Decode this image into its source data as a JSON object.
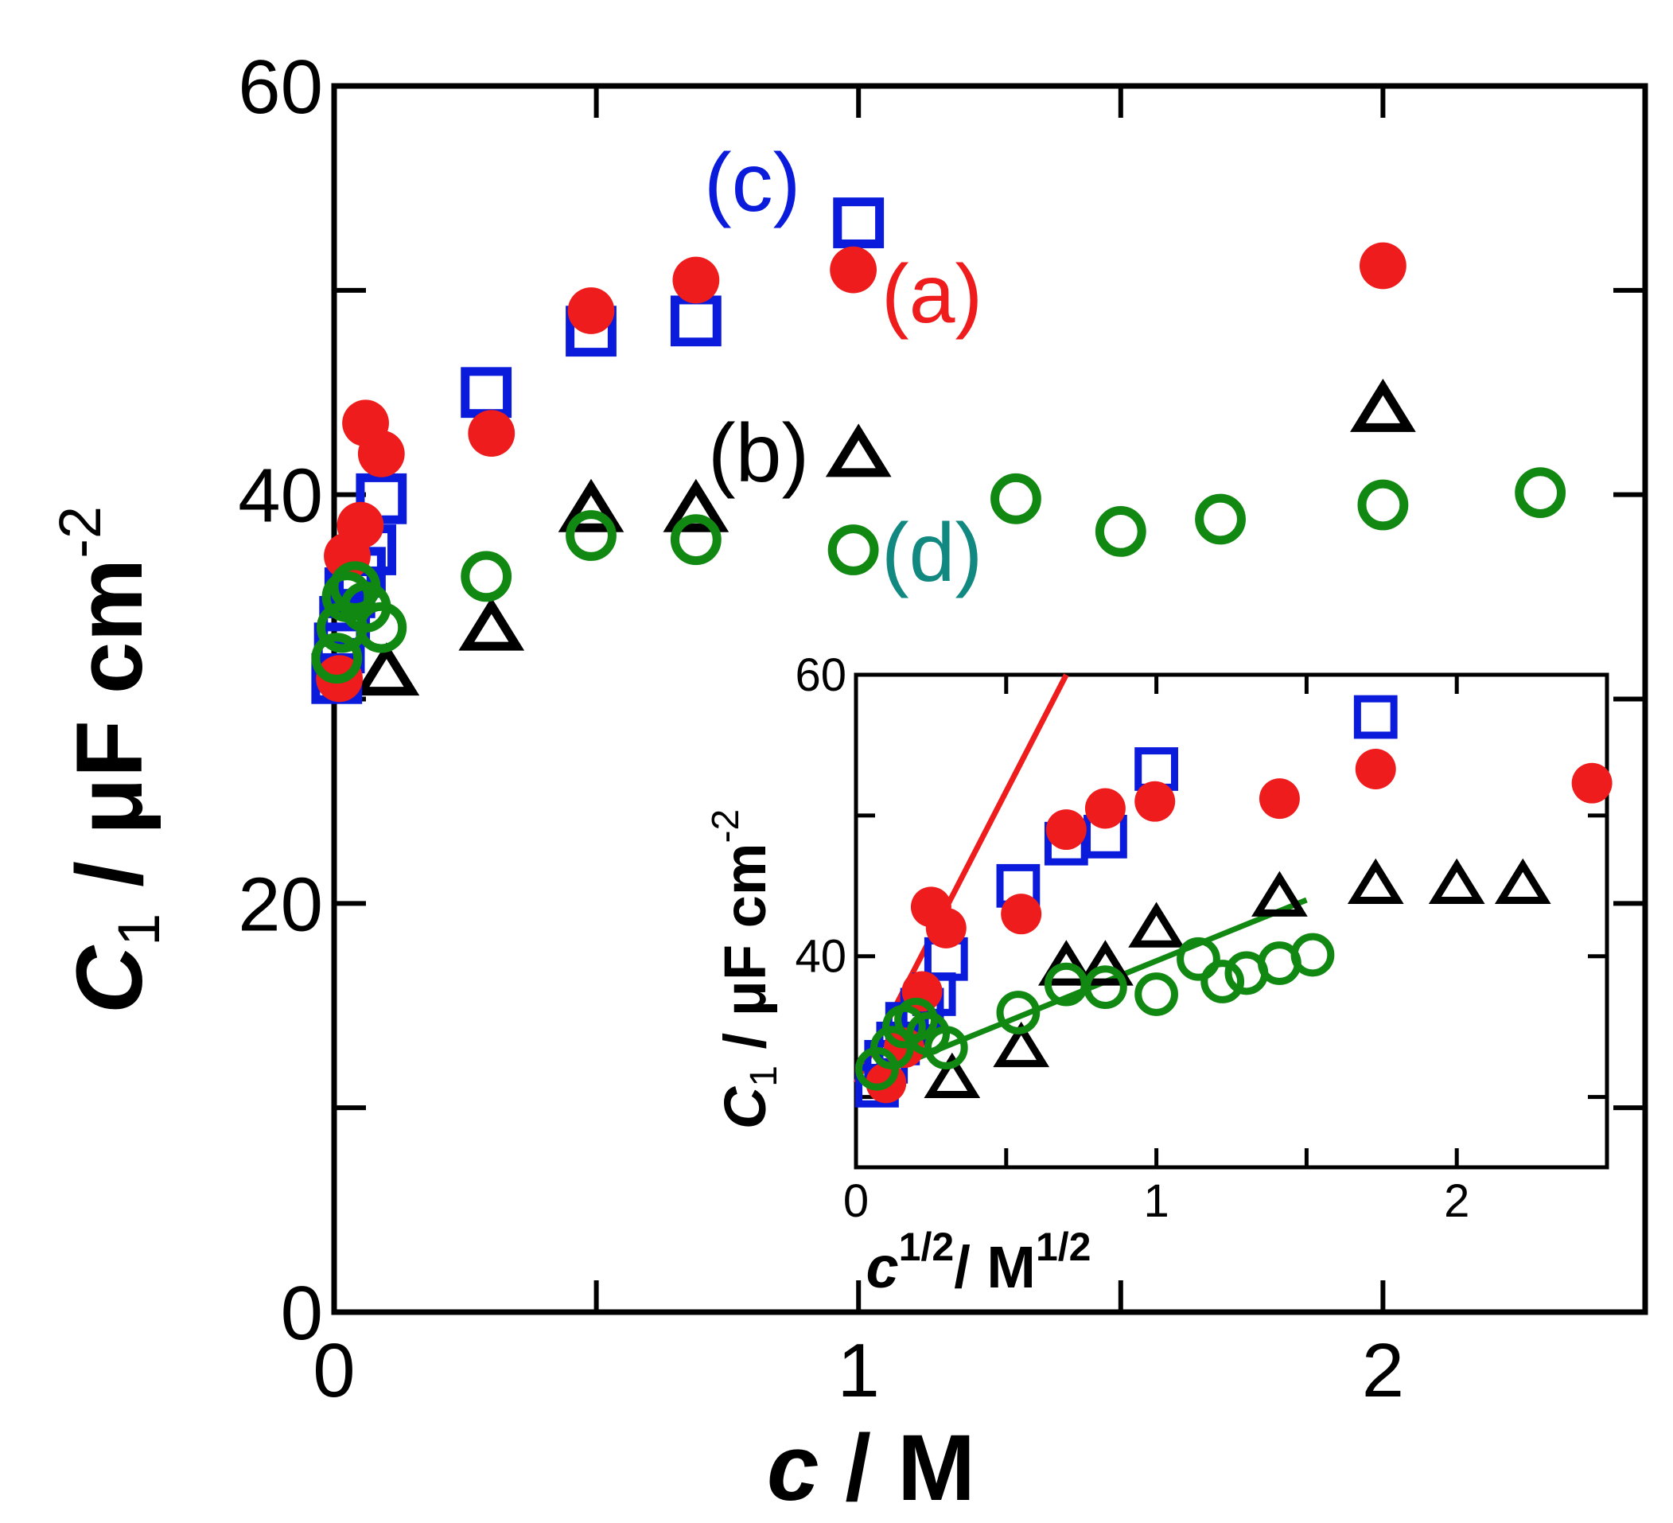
{
  "chart_data": [
    {
      "id": "main",
      "type": "scatter",
      "xlabel_var": "c",
      "xlabel_unit": " / M",
      "ylabel_var": "C",
      "ylabel_sub": "1",
      "ylabel_unit": " / μF cm",
      "ylabel_sup": "-2",
      "xlim": [
        0,
        2.5
      ],
      "ylim": [
        0,
        60
      ],
      "x_ticks": [
        0,
        1,
        2
      ],
      "x_tick_labels": [
        "0",
        "1",
        "2"
      ],
      "x_minor_ticks": [
        0.5,
        1.5
      ],
      "y_ticks": [
        0,
        20,
        40,
        60
      ],
      "y_tick_labels": [
        "0",
        "20",
        "40",
        "60"
      ],
      "y_minor_ticks": [
        10,
        30,
        50
      ],
      "series": [
        {
          "name": "(a)",
          "marker": "filled-circle",
          "color": "#ee1c1c",
          "x": [
            0.01,
            0.025,
            0.05,
            0.06,
            0.09,
            0.3,
            0.49,
            0.69,
            0.99,
            2.0
          ],
          "y": [
            31,
            37,
            38.5,
            43.5,
            42,
            43,
            49,
            50.5,
            51,
            51.2
          ]
        },
        {
          "name": "(b)",
          "marker": "open-triangle",
          "color": "#000000",
          "x": [
            0.1,
            0.3,
            0.49,
            0.69,
            1.0,
            2.0
          ],
          "y": [
            31.2,
            33.4,
            39.2,
            39.2,
            41.9,
            44.1
          ]
        },
        {
          "name": "(c)",
          "marker": "open-square",
          "color": "#0a1bdc",
          "x": [
            0.005,
            0.01,
            0.02,
            0.03,
            0.05,
            0.07,
            0.09,
            0.29,
            0.49,
            0.69,
            1.0
          ],
          "y": [
            31,
            32.5,
            33.8,
            35.2,
            36.2,
            37.3,
            39.8,
            45,
            48,
            48.5,
            53.3
          ]
        },
        {
          "name": "(d)",
          "marker": "open-circle",
          "color": "#118811",
          "x": [
            0.005,
            0.015,
            0.025,
            0.04,
            0.06,
            0.09,
            0.29,
            0.49,
            0.69,
            0.99,
            1.3,
            1.5,
            1.69,
            2.0,
            2.3
          ],
          "y": [
            32,
            33.5,
            35,
            35.5,
            34.5,
            33.5,
            36,
            38,
            37.8,
            37.3,
            39.8,
            38.2,
            38.8,
            39.5,
            40.1
          ]
        }
      ],
      "annotations": [
        {
          "text": "(a)",
          "color": "#ee1c1c"
        },
        {
          "text": "(b)",
          "color": "#000000"
        },
        {
          "text": "(c)",
          "color": "#0a1bdc"
        },
        {
          "text": "(d)",
          "color": "#118880"
        }
      ]
    },
    {
      "id": "inset",
      "type": "scatter",
      "xlabel_var": "c",
      "xlabel_sup": "1/2",
      "xlabel_unit": "/ M",
      "xlabel_unit_sup": "1/2",
      "ylabel_var": "C",
      "ylabel_sub": "1",
      "ylabel_unit": " / μF cm",
      "ylabel_sup": "-2",
      "xlim": [
        0,
        2.5
      ],
      "ylim": [
        25,
        60
      ],
      "x_ticks": [
        0,
        1,
        2
      ],
      "x_tick_labels": [
        "0",
        "1",
        "2"
      ],
      "x_minor_ticks": [
        0.5,
        1.5
      ],
      "y_ticks": [
        40,
        60
      ],
      "y_tick_labels": [
        "40",
        "60"
      ],
      "y_minor_ticks": [
        30,
        50
      ],
      "series": [
        {
          "name": "(a)",
          "marker": "filled-circle",
          "color": "#ee1c1c",
          "x": [
            0.1,
            0.16,
            0.22,
            0.25,
            0.3,
            0.55,
            0.7,
            0.83,
            0.995,
            1.41,
            1.73,
            2.45
          ],
          "y": [
            31,
            33.5,
            37.5,
            43.5,
            42,
            43,
            49,
            50.5,
            51,
            51.2,
            53.3,
            52.3
          ]
        },
        {
          "name": "(b)",
          "marker": "open-triangle",
          "color": "#000000",
          "x": [
            0.32,
            0.55,
            0.7,
            0.83,
            1.0,
            1.41,
            1.73,
            2.0,
            2.22
          ],
          "y": [
            31.2,
            33.4,
            39.2,
            39.2,
            41.9,
            44.1,
            45,
            45,
            45
          ]
        },
        {
          "name": "(c)",
          "marker": "open-square",
          "color": "#0a1bdc",
          "x": [
            0.07,
            0.1,
            0.14,
            0.17,
            0.22,
            0.26,
            0.3,
            0.54,
            0.7,
            0.83,
            1.0,
            1.73
          ],
          "y": [
            30.8,
            32.5,
            33.8,
            35.2,
            36.2,
            37.3,
            39.8,
            45,
            48,
            48.5,
            53.3,
            57
          ]
        },
        {
          "name": "(d)",
          "marker": "open-circle",
          "color": "#118811",
          "x": [
            0.07,
            0.12,
            0.16,
            0.2,
            0.24,
            0.3,
            0.54,
            0.7,
            0.83,
            1.0,
            1.14,
            1.22,
            1.3,
            1.41,
            1.52
          ],
          "y": [
            32,
            33.5,
            35,
            35.5,
            34.5,
            33.5,
            36,
            38,
            37.8,
            37.3,
            39.8,
            38.2,
            38.8,
            39.5,
            40.1
          ]
        }
      ],
      "fit_lines": [
        {
          "name": "fit-a",
          "color": "#ee1c1c",
          "x": [
            0,
            0.7
          ],
          "y": [
            31,
            60
          ]
        },
        {
          "name": "fit-d",
          "color": "#118811",
          "x": [
            0,
            1.5
          ],
          "y": [
            31,
            44
          ]
        }
      ]
    }
  ]
}
